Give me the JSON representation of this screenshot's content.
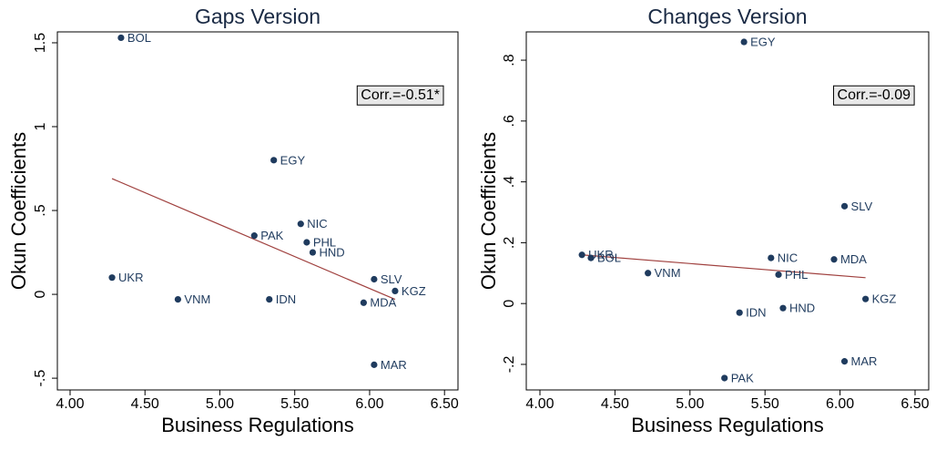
{
  "chart_data": [
    {
      "type": "scatter",
      "title": "Gaps Version",
      "x_label": "Business Regulations",
      "y_label": "Okun Coefficients",
      "annotation": "Corr.=-0.51*",
      "color": "#1f3b5e",
      "fit_color": "#a0413f",
      "xlim": [
        3.915,
        6.59
      ],
      "ylim": [
        -0.57,
        1.565
      ],
      "xticks": [
        {
          "value": 4,
          "label": "4.00"
        },
        {
          "value": 4.5,
          "label": "4.50"
        },
        {
          "value": 5,
          "label": "5.00"
        },
        {
          "value": 5.5,
          "label": "5.50"
        },
        {
          "value": 6,
          "label": "6.00"
        },
        {
          "value": 6.5,
          "label": "6.50"
        }
      ],
      "yticks": [
        {
          "value": -0.5,
          "label": "-.5"
        },
        0,
        {
          "value": 0.5,
          "label": ".5"
        },
        1,
        1.5
      ],
      "labels": [
        "BOL",
        "EGY",
        "NIC",
        "PAK",
        "PHL",
        "HND",
        "UKR",
        "SLV",
        "KGZ",
        "VNM",
        "IDN",
        "MDA",
        "MAR"
      ],
      "x": [
        4.34,
        5.36,
        5.54,
        5.23,
        5.58,
        5.62,
        4.28,
        6.03,
        6.17,
        4.72,
        5.33,
        5.96,
        6.03
      ],
      "y": [
        1.53,
        0.8,
        0.42,
        0.35,
        0.31,
        0.25,
        0.1,
        0.09,
        0.02,
        -0.03,
        -0.03,
        -0.05,
        -0.42
      ],
      "fit": {
        "x": [
          4.28,
          6.17
        ],
        "y": [
          0.69,
          -0.03
        ]
      }
    },
    {
      "type": "scatter",
      "title": "Changes Version",
      "x_label": "Business Regulations",
      "y_label": "Okun Coefficients",
      "annotation": "Corr.=-0.09",
      "color": "#1f3b5e",
      "fit_color": "#a0413f",
      "xlim": [
        3.909,
        6.591
      ],
      "ylim": [
        -0.284,
        0.893
      ],
      "xticks": [
        {
          "value": 4,
          "label": "4.00"
        },
        {
          "value": 4.5,
          "label": "4.50"
        },
        {
          "value": 5,
          "label": "5.00"
        },
        {
          "value": 5.5,
          "label": "5.50"
        },
        {
          "value": 6,
          "label": "6.00"
        },
        {
          "value": 6.5,
          "label": "6.50"
        }
      ],
      "yticks": [
        {
          "value": -0.2,
          "label": "-.2"
        },
        0,
        {
          "value": 0.2,
          "label": ".2"
        },
        {
          "value": 0.4,
          "label": ".4"
        },
        {
          "value": 0.6,
          "label": ".6"
        },
        {
          "value": 0.8,
          "label": ".8"
        }
      ],
      "labels": [
        "EGY",
        "SLV",
        "UKR",
        "BOL",
        "NIC",
        "MDA",
        "PHL",
        "VNM",
        "KGZ",
        "IDN",
        "HND",
        "MAR",
        "PAK"
      ],
      "x": [
        5.36,
        6.03,
        4.28,
        4.34,
        5.54,
        5.96,
        5.59,
        4.72,
        6.17,
        5.33,
        5.62,
        6.03,
        5.23
      ],
      "y": [
        0.86,
        0.32,
        0.16,
        0.15,
        0.15,
        0.145,
        0.095,
        0.1,
        0.015,
        -0.03,
        -0.015,
        -0.19,
        -0.245
      ],
      "fit": {
        "x": [
          4.28,
          6.17
        ],
        "y": [
          0.16,
          0.085
        ]
      }
    }
  ]
}
